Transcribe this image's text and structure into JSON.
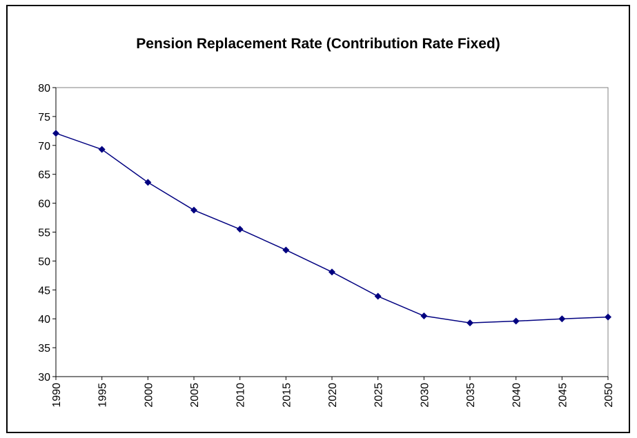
{
  "chart_data": {
    "type": "line",
    "title": "Pension Replacement Rate (Contribution Rate Fixed)",
    "x": [
      1990,
      1995,
      2000,
      2005,
      2010,
      2015,
      2020,
      2025,
      2030,
      2035,
      2040,
      2045,
      2050
    ],
    "values": [
      72.1,
      69.3,
      63.6,
      58.8,
      55.5,
      51.9,
      48.1,
      43.9,
      40.5,
      39.3,
      39.6,
      40.0,
      40.3
    ],
    "color": "#000080",
    "xlim": [
      1990,
      2050
    ],
    "xticks": [
      1990,
      1995,
      2000,
      2005,
      2010,
      2015,
      2020,
      2025,
      2030,
      2035,
      2040,
      2045,
      2050
    ],
    "ylim": [
      30,
      80
    ],
    "yticks": [
      30,
      35,
      40,
      45,
      50,
      55,
      60,
      65,
      70,
      75,
      80
    ],
    "grid": false
  }
}
